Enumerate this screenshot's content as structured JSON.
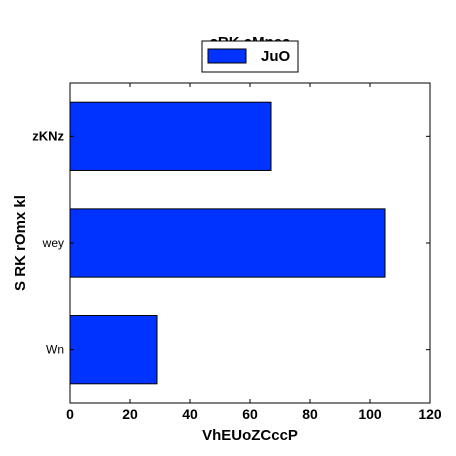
{
  "chart_data": {
    "type": "bar",
    "orientation": "horizontal",
    "title": "sRK aMnea",
    "xlabel": "VhEUoZCccP",
    "ylabel": "S RK rOmx kl",
    "categories": [
      "Wn",
      "wey",
      "zKNz"
    ],
    "series": [
      {
        "name": "JuO",
        "values": [
          29,
          105,
          67
        ],
        "color": "#0033ff"
      }
    ],
    "xlim": [
      0,
      120
    ],
    "xticks": [
      "0",
      "20",
      "40",
      "60",
      "80",
      "100",
      "120"
    ],
    "grid": false,
    "legend": "top-center"
  }
}
